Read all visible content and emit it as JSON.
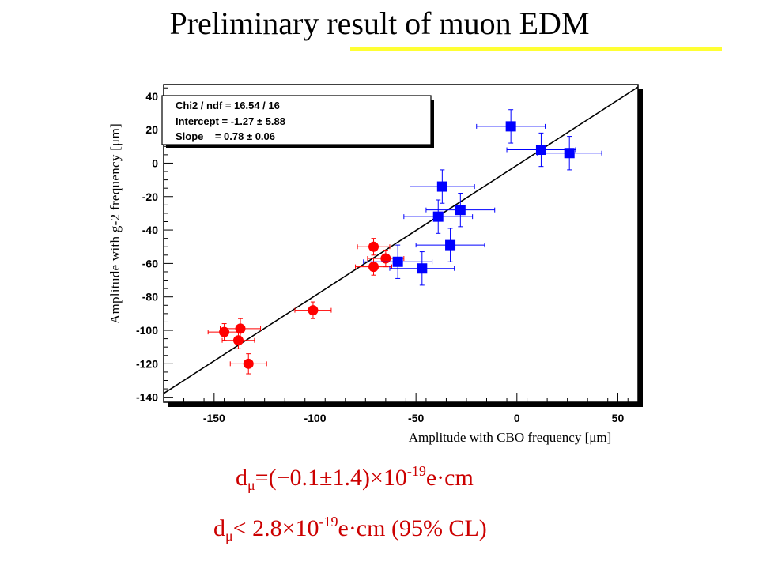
{
  "slide": {
    "title": "Preliminary result of muon EDM"
  },
  "colors": {
    "accent_rule": "#ffff33",
    "result_text": "#cc0000",
    "series_1": "#ff0000",
    "series_2": "#0000ff"
  },
  "chart_data": {
    "type": "scatter",
    "xlabel": "Amplitude with CBO frequency [μm]",
    "ylabel": "Amplitude with g-2 frequency [μm]",
    "xlim": [
      -175,
      60
    ],
    "ylim": [
      -143,
      47
    ],
    "x_ticks": [
      -150,
      -100,
      -50,
      0,
      50
    ],
    "y_ticks": [
      40,
      20,
      0,
      -20,
      -40,
      -60,
      -80,
      -100,
      -120,
      -140
    ],
    "grid": false,
    "legend": "none",
    "stats_box": {
      "lines": [
        "Chi2 / ndf = 16.54 / 16",
        "Intercept = -1.27 ± 5.88",
        "Slope    = 0.78 ± 0.06"
      ]
    },
    "fit_line": {
      "intercept": -1.27,
      "slope": 0.78
    },
    "series": [
      {
        "marker": "circle",
        "color": "#ff0000",
        "points": [
          {
            "x": -145,
            "y": -101,
            "xerr": 8,
            "yerr": 5
          },
          {
            "x": -137,
            "y": -99,
            "xerr": 10,
            "yerr": 6
          },
          {
            "x": -138,
            "y": -106,
            "xerr": 8,
            "yerr": 5
          },
          {
            "x": -133,
            "y": -120,
            "xerr": 9,
            "yerr": 6
          },
          {
            "x": -101,
            "y": -88,
            "xerr": 9,
            "yerr": 5
          },
          {
            "x": -71,
            "y": -50,
            "xerr": 8,
            "yerr": 5
          },
          {
            "x": -71,
            "y": -62,
            "xerr": 9,
            "yerr": 5
          },
          {
            "x": -65,
            "y": -57,
            "xerr": 9,
            "yerr": 5
          }
        ]
      },
      {
        "marker": "square",
        "color": "#0000ff",
        "points": [
          {
            "x": -3,
            "y": 22,
            "xerr": 17,
            "yerr": 10
          },
          {
            "x": 12,
            "y": 8,
            "xerr": 17,
            "yerr": 10
          },
          {
            "x": 26,
            "y": 6,
            "xerr": 16,
            "yerr": 10
          },
          {
            "x": -37,
            "y": -14,
            "xerr": 16,
            "yerr": 10
          },
          {
            "x": -28,
            "y": -28,
            "xerr": 17,
            "yerr": 10
          },
          {
            "x": -39,
            "y": -32,
            "xerr": 17,
            "yerr": 10
          },
          {
            "x": -33,
            "y": -49,
            "xerr": 17,
            "yerr": 10
          },
          {
            "x": -59,
            "y": -59,
            "xerr": 17,
            "yerr": 10
          },
          {
            "x": -47,
            "y": -63,
            "xerr": 16,
            "yerr": 10
          }
        ]
      }
    ]
  },
  "results": {
    "line1": {
      "sym": "d",
      "sub": "μ",
      "pre": "=(−0.1±1.4)×10",
      "sup": "-19",
      "post": "e·cm"
    },
    "line2": {
      "sym": "d",
      "sub": "μ",
      "pre": "< 2.8×10",
      "sup": "-19",
      "post": "e·cm (95% CL)"
    }
  }
}
